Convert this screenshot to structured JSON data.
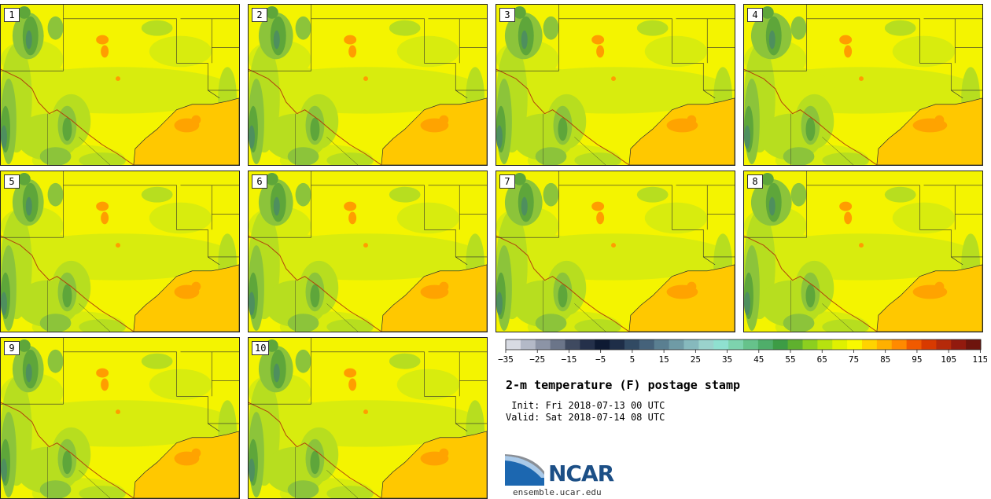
{
  "figure": {
    "title": "2-m temperature (F) postage stamp",
    "init": " Init: Fri 2018-07-13 00 UTC",
    "valid": "Valid: Sat 2018-07-14 08 UTC"
  },
  "members": [
    {
      "label": "1"
    },
    {
      "label": "2"
    },
    {
      "label": "3"
    },
    {
      "label": "4"
    },
    {
      "label": "5"
    },
    {
      "label": "6"
    },
    {
      "label": "7"
    },
    {
      "label": "8"
    },
    {
      "label": "9"
    },
    {
      "label": "10"
    }
  ],
  "colorbar": {
    "min": -35,
    "max": 120,
    "step": 5,
    "tick_labels": [
      "−35",
      "−25",
      "−15",
      "−5",
      "5",
      "15",
      "25",
      "35",
      "45",
      "55",
      "65",
      "75",
      "85",
      "95",
      "105",
      "115"
    ],
    "colors": [
      "#d8dbe3",
      "#b3b9c7",
      "#8c94a6",
      "#6b7589",
      "#3f4a60",
      "#24304a",
      "#0e1a33",
      "#1e2e48",
      "#314a63",
      "#45627a",
      "#5a7f91",
      "#6f9ba6",
      "#86b9bd",
      "#9ad2cc",
      "#8fe0d0",
      "#7dd3ae",
      "#66c28b",
      "#4fae6a",
      "#3d9c45",
      "#5fb02e",
      "#8ccf1f",
      "#b7e20f",
      "#dff000",
      "#f9f900",
      "#ffd300",
      "#ffb000",
      "#ff8a00",
      "#f05a00",
      "#d83a00",
      "#b52a0a",
      "#921a0e",
      "#6e140d"
    ]
  },
  "logo": {
    "text": "NCAR",
    "site": "ensemble.ucar.edu"
  },
  "map_colors": {
    "yellow": "#f4f400",
    "yellow_green": "#d8ec0e",
    "green_light": "#b7de1f",
    "green": "#8cc43a",
    "green_dark": "#5ea63a",
    "teal": "#4e8f5e",
    "gulf": "#ffc800",
    "gulf_hot": "#ffa300",
    "orange": "#ff9d00",
    "line": "#2e2e2e"
  }
}
